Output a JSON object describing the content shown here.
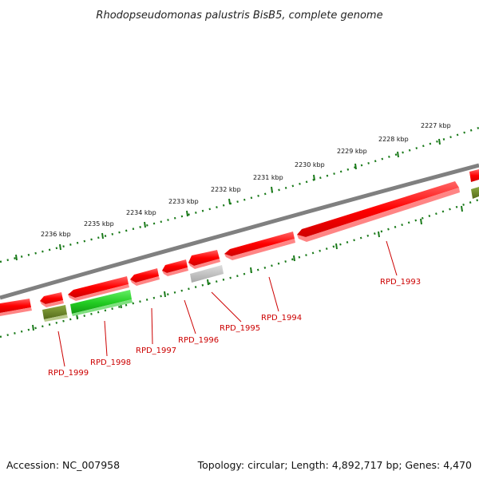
{
  "title": "Rhodopseudomonas palustris BisB5, complete genome",
  "footer": {
    "accession": "Accession: NC_007958",
    "summary": "Topology: circular; Length: 4,892,717 bp; Genes: 4,470"
  },
  "colors": {
    "backbone": "#808080",
    "gene_red": "#ff0000",
    "gene_green": "#33cc33",
    "gene_olive": "#6b8e23",
    "gene_gray": "#bdbdbd",
    "ruler_dots": "#1a7a1a",
    "label_red": "#cc0000"
  },
  "ruler_labels": [
    "2227 kbp",
    "2228 kbp",
    "2229 kbp",
    "2230 kbp",
    "2231 kbp",
    "2232 kbp",
    "2233 kbp",
    "2234 kbp",
    "2235 kbp",
    "2236 kbp"
  ],
  "gene_labels": [
    "RPD_1993",
    "RPD_1994",
    "RPD_1995",
    "RPD_1996",
    "RPD_1997",
    "RPD_1998",
    "RPD_1999"
  ]
}
